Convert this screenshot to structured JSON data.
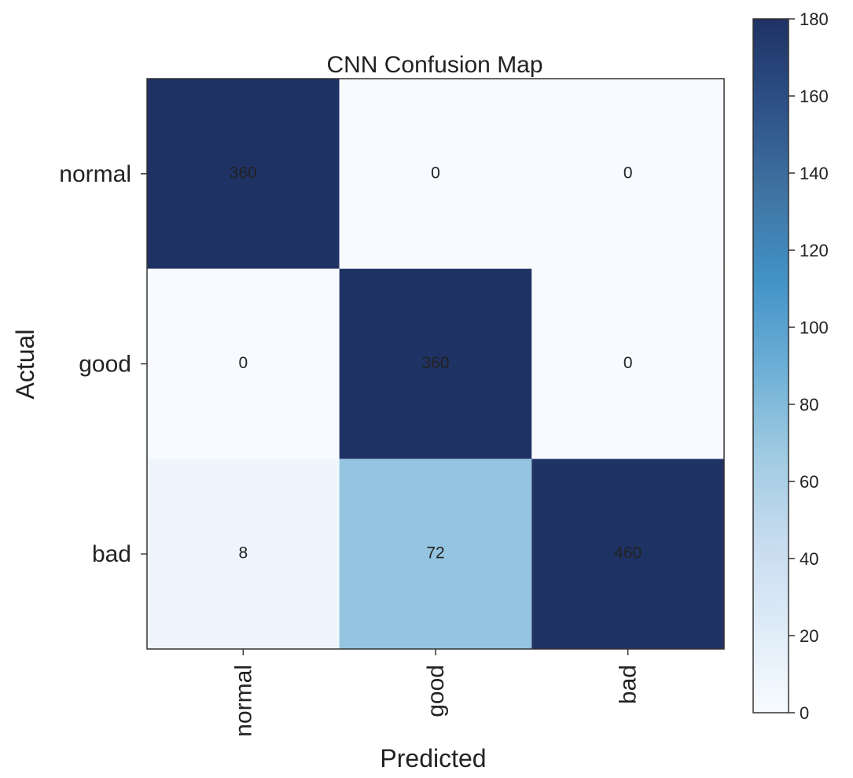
{
  "chart_data": {
    "type": "heatmap",
    "title": "CNN Confusion Map",
    "xlabel": "Predicted",
    "ylabel": "Actual",
    "row_labels": [
      "normal",
      "good",
      "bad"
    ],
    "col_labels": [
      "normal",
      "good",
      "bad"
    ],
    "values": [
      [
        360,
        0,
        0
      ],
      [
        0,
        360,
        0
      ],
      [
        8,
        72,
        460
      ]
    ],
    "colorbar": {
      "min": 0,
      "max": 180,
      "ticks": [
        0,
        20,
        40,
        60,
        80,
        100,
        120,
        140,
        160,
        180
      ],
      "cmap": "Blues"
    },
    "colors": {
      "low": "#f7fbff",
      "high": "#1f3264",
      "cell_text_dark": "#111111",
      "cell_text_light": "#ffffff",
      "axis": "#333333"
    }
  }
}
